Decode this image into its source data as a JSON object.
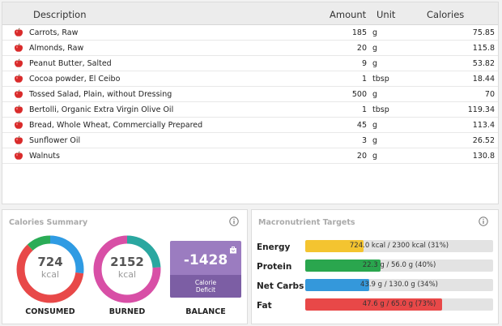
{
  "table": {
    "headers": {
      "description": "Description",
      "amount": "Amount",
      "unit": "Unit",
      "calories": "Calories"
    },
    "rows": [
      {
        "description": "Carrots, Raw",
        "amount": "185",
        "unit": "g",
        "calories": "75.85"
      },
      {
        "description": "Almonds, Raw",
        "amount": "20",
        "unit": "g",
        "calories": "115.8"
      },
      {
        "description": "Peanut Butter, Salted",
        "amount": "9",
        "unit": "g",
        "calories": "53.82"
      },
      {
        "description": "Cocoa powder, El Ceibo",
        "amount": "1",
        "unit": "tbsp",
        "calories": "18.44"
      },
      {
        "description": "Tossed Salad, Plain, without Dressing",
        "amount": "500",
        "unit": "g",
        "calories": "70"
      },
      {
        "description": "Bertolli, Organic Extra Virgin Olive Oil",
        "amount": "1",
        "unit": "tbsp",
        "calories": "119.34"
      },
      {
        "description": "Bread, Whole Wheat, Commercially Prepared",
        "amount": "45",
        "unit": "g",
        "calories": "113.4"
      },
      {
        "description": "Sunflower Oil",
        "amount": "3",
        "unit": "g",
        "calories": "26.52"
      },
      {
        "description": "Walnuts",
        "amount": "20",
        "unit": "g",
        "calories": "130.8"
      }
    ],
    "row_icon": "apple-icon"
  },
  "calories_summary": {
    "title": "Calories Summary",
    "consumed": {
      "value": "724",
      "unit": "kcal",
      "label": "CONSUMED",
      "segments": [
        {
          "color": "#2f9be3",
          "fraction": 0.27
        },
        {
          "color": "#e84848",
          "fraction": 0.61
        },
        {
          "color": "#2aac56",
          "fraction": 0.12
        }
      ]
    },
    "burned": {
      "value": "2152",
      "unit": "kcal",
      "label": "BURNED",
      "segments": [
        {
          "color": "#2aa7a0",
          "fraction": 0.24
        },
        {
          "color": "#d84fa6",
          "fraction": 0.76
        }
      ]
    },
    "balance": {
      "value": "-1428",
      "sub1": "Calorie",
      "sub2": "Deficit",
      "label": "BALANCE"
    }
  },
  "macro_targets": {
    "title": "Macronutrient Targets",
    "rows": [
      {
        "name": "Energy",
        "text": "724.0 kcal / 2300 kcal (31%)",
        "fraction": 0.31,
        "color": "#f4c430"
      },
      {
        "name": "Protein",
        "text": "22.3 g / 56.0 g (40%)",
        "fraction": 0.4,
        "color": "#2aa64e"
      },
      {
        "name": "Net Carbs",
        "text": "43.9 g / 130.0 g (34%)",
        "fraction": 0.34,
        "color": "#3498db"
      },
      {
        "name": "Fat",
        "text": "47.6 g / 65.0 g (73%)",
        "fraction": 0.73,
        "color": "#e84848"
      }
    ]
  },
  "colors": {
    "panel_title": "#aaaaaa",
    "balance_top": "#9b7cc0",
    "balance_bottom": "#7c5ea4"
  }
}
